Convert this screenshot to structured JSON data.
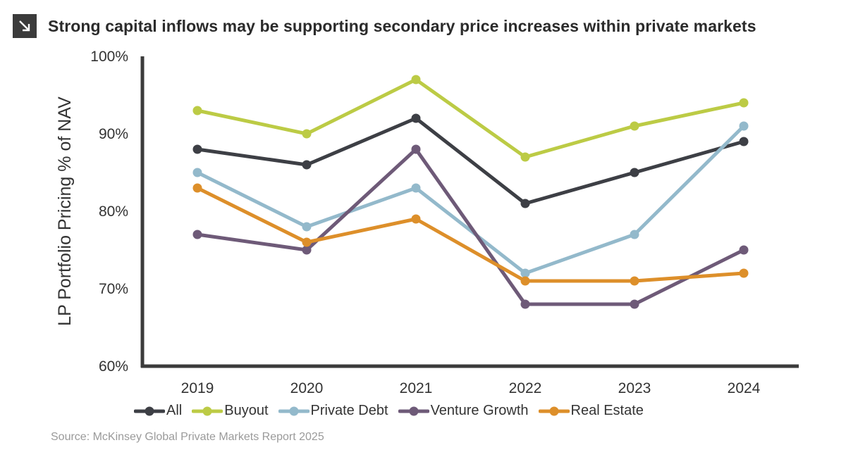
{
  "title": "Strong capital inflows may be supporting secondary price increases within private markets",
  "source": "Source: McKinsey Global Private Markets Report 2025",
  "chart_data": {
    "type": "line",
    "ylabel": "LP Portfolio Pricing % of NAV",
    "xlabel": "",
    "ylim": [
      60,
      100
    ],
    "yticks": [
      "60%",
      "70%",
      "80%",
      "90%",
      "100%"
    ],
    "categories": [
      "2019",
      "2020",
      "2021",
      "2022",
      "2023",
      "2024"
    ],
    "legend_position": "bottom",
    "grid": false,
    "series": [
      {
        "name": "All",
        "color": "#3d3f45",
        "values": [
          88,
          86,
          92,
          81,
          85,
          89
        ]
      },
      {
        "name": "Buyout",
        "color": "#bccb45",
        "values": [
          93,
          90,
          97,
          87,
          91,
          94
        ]
      },
      {
        "name": "Private Debt",
        "color": "#93b9cb",
        "values": [
          85,
          78,
          83,
          72,
          77,
          91
        ]
      },
      {
        "name": "Venture Growth",
        "color": "#6e5a78",
        "values": [
          77,
          75,
          88,
          68,
          68,
          75
        ]
      },
      {
        "name": "Real Estate",
        "color": "#dd8f2a",
        "values": [
          83,
          76,
          79,
          71,
          71,
          72
        ]
      }
    ]
  },
  "icons": {
    "title_icon": "arrow-down-right-icon"
  }
}
